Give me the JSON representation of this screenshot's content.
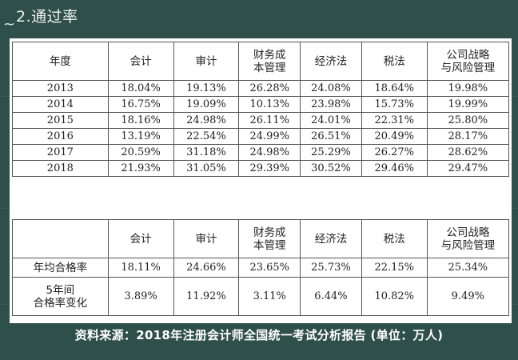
{
  "title": "2.通过率",
  "decor_symbol": "~",
  "table1": {
    "headers": [
      "年度",
      "会计",
      "审计",
      "财务成\n本管理",
      "经济法",
      "税法",
      "公司战略\n与风险管理"
    ],
    "rows": [
      [
        "2013",
        "18.04%",
        "19.13%",
        "26.28%",
        "24.08%",
        "18.64%",
        "19.98%"
      ],
      [
        "2014",
        "16.75%",
        "19.09%",
        "10.13%",
        "23.98%",
        "15.73%",
        "19.99%"
      ],
      [
        "2015",
        "18.16%",
        "24.98%",
        "26.11%",
        "24.01%",
        "22.31%",
        "25.80%"
      ],
      [
        "2016",
        "13.19%",
        "22.54%",
        "24.99%",
        "26.51%",
        "20.49%",
        "28.17%"
      ],
      [
        "2017",
        "20.59%",
        "31.18%",
        "24.98%",
        "25.29%",
        "26.27%",
        "28.62%"
      ],
      [
        "2018",
        "21.93%",
        "31.05%",
        "29.39%",
        "30.52%",
        "29.46%",
        "29.47%"
      ]
    ]
  },
  "table2": {
    "headers": [
      "",
      "会计",
      "审计",
      "财务成\n本管理",
      "经济法",
      "税法",
      "公司战略\n与风险管理"
    ],
    "rows": [
      [
        "年均合格率",
        "18.11%",
        "24.66%",
        "23.65%",
        "25.73%",
        "22.15%",
        "25.34%"
      ],
      [
        "5年间\n合格率变化",
        "3.89%",
        "11.92%",
        "3.11%",
        "6.44%",
        "10.82%",
        "9.49%"
      ]
    ]
  },
  "footer": "资料来源：2018年注册会计师全国统一考试分析报告 (单位：万人)"
}
